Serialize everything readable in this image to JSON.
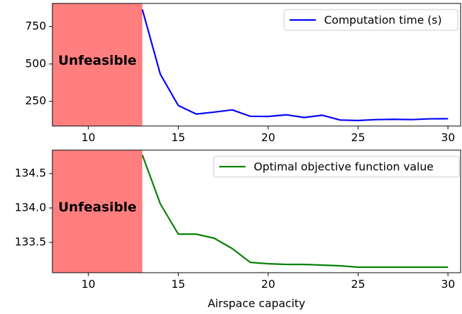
{
  "chart_data": [
    {
      "type": "line",
      "x": [
        13,
        14,
        15,
        16,
        17,
        18,
        19,
        20,
        21,
        22,
        23,
        24,
        25,
        26,
        27,
        28,
        29,
        30
      ],
      "series": [
        {
          "name": "Computation time (s)",
          "color": "#0000ff",
          "values": [
            865,
            432,
            222,
            165,
            178,
            193,
            150,
            149,
            160,
            142,
            157,
            125,
            122,
            128,
            130,
            128,
            133,
            134
          ]
        }
      ],
      "xlim": [
        8,
        30.7
      ],
      "ylim": [
        85,
        905
      ],
      "xticks": [
        10,
        15,
        20,
        25,
        30
      ],
      "yticks": [
        250,
        500,
        750
      ],
      "shaded_region": {
        "x_from": 8,
        "x_to": 13,
        "label": "Unfeasible",
        "color": "#ff7f7f"
      },
      "legend_position": "top-right",
      "xlabel": "",
      "ylabel": ""
    },
    {
      "type": "line",
      "x": [
        13,
        14,
        15,
        16,
        17,
        18,
        19,
        20,
        21,
        22,
        23,
        24,
        25,
        26,
        27,
        28,
        29,
        30
      ],
      "series": [
        {
          "name": "Optimal objective function value",
          "color": "#008000",
          "values": [
            134.77,
            134.06,
            133.62,
            133.62,
            133.56,
            133.41,
            133.21,
            133.19,
            133.18,
            133.18,
            133.17,
            133.16,
            133.14,
            133.14,
            133.14,
            133.14,
            133.14,
            133.14
          ]
        }
      ],
      "xlim": [
        8,
        30.7
      ],
      "ylim": [
        133.06,
        134.84
      ],
      "xticks": [
        10,
        15,
        20,
        25,
        30
      ],
      "yticks": [
        133.5,
        134.0,
        134.5
      ],
      "shaded_region": {
        "x_from": 8,
        "x_to": 13,
        "label": "Unfeasible",
        "color": "#ff7f7f"
      },
      "legend_position": "top-right",
      "xlabel": "Airspace capacity",
      "ylabel": ""
    }
  ]
}
